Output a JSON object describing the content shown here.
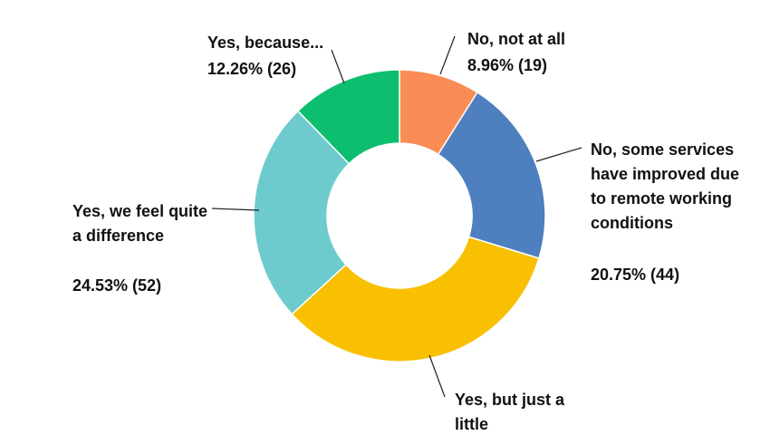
{
  "chart_data": {
    "type": "pie",
    "style": "donut",
    "slices": [
      {
        "label": "No, not at all",
        "percent": 8.96,
        "count": 19,
        "color": "#FA8C55"
      },
      {
        "label": "No, some services have improved due to remote working conditions",
        "percent": 20.75,
        "count": 44,
        "color": "#4E7FBF"
      },
      {
        "label": "Yes, but just a little",
        "percent": 33.49,
        "count": 71,
        "color": "#F8C000"
      },
      {
        "label": "Yes, we feel quite a difference",
        "percent": 24.53,
        "count": 52,
        "color": "#6ECBCD"
      },
      {
        "label": "Yes, because...",
        "percent": 12.26,
        "count": 26,
        "color": "#0DBE6E"
      }
    ],
    "labels": {
      "no_not_at_all": {
        "text": "No, not at all",
        "value": "8.96% (19)"
      },
      "no_some_services": {
        "text": "No, some services\nhave improved due\nto remote working\nconditions",
        "value": "20.75% (44)"
      },
      "yes_little": {
        "text": "Yes, but just a\nlittle"
      },
      "yes_difference": {
        "text": "Yes, we feel quite\na difference",
        "value": "24.53% (52)"
      },
      "yes_because": {
        "text": "Yes, because...",
        "value": "12.26% (26)"
      }
    }
  }
}
